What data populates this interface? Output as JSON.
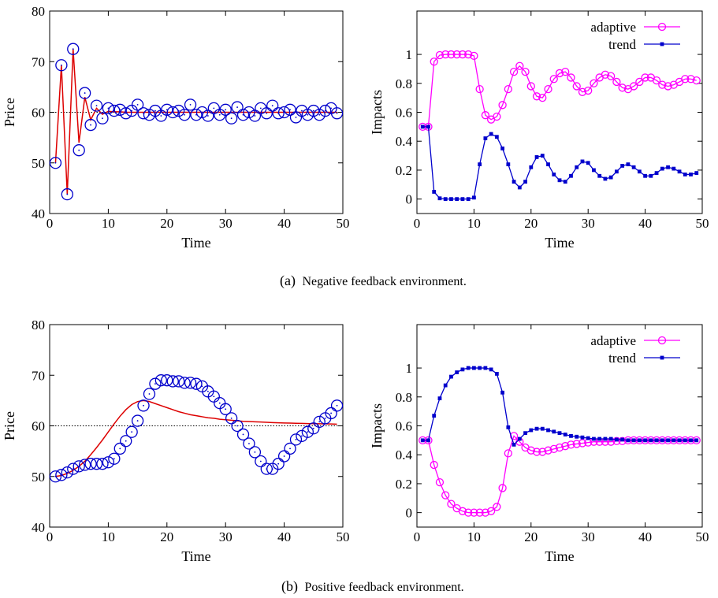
{
  "captions": {
    "a_letter": "(a)",
    "a_text": "Negative feedback environment.",
    "b_letter": "(b)",
    "b_text": "Positive feedback environment."
  },
  "colors": {
    "price_markers": "#0000cc",
    "price_line": "#dd0000",
    "fundamental_line": "#000000",
    "adaptive": "#ff00ff",
    "trend": "#0000cc"
  },
  "chart_data": [
    {
      "id": "a-price",
      "type": "line",
      "xlabel": "Time",
      "ylabel": "Price",
      "xlim": [
        0,
        50
      ],
      "ylim": [
        40,
        80
      ],
      "xticks": [
        0,
        10,
        20,
        30,
        40,
        50
      ],
      "yticks": [
        40,
        50,
        60,
        70,
        80
      ],
      "grid": false,
      "reference_line": {
        "y": 60,
        "style": "dotted"
      },
      "series": [
        {
          "role": "markers",
          "marker": "circle",
          "x": [
            1,
            2,
            3,
            4,
            5,
            6,
            7,
            8,
            9,
            10,
            11,
            12,
            13,
            14,
            15,
            16,
            17,
            18,
            19,
            20,
            21,
            22,
            23,
            24,
            25,
            26,
            27,
            28,
            29,
            30,
            31,
            32,
            33,
            34,
            35,
            36,
            37,
            38,
            39,
            40,
            41,
            42,
            43,
            44,
            45,
            46,
            47,
            48,
            49
          ],
          "values": [
            50.0,
            69.3,
            43.8,
            72.5,
            52.5,
            63.8,
            57.5,
            61.3,
            58.8,
            60.8,
            60.3,
            60.5,
            59.8,
            60.3,
            61.5,
            59.8,
            59.5,
            60.3,
            59.3,
            60.5,
            60.0,
            60.3,
            59.5,
            61.5,
            59.5,
            60.0,
            59.3,
            60.8,
            59.5,
            60.5,
            58.8,
            61.0,
            59.5,
            60.0,
            59.3,
            60.8,
            59.8,
            61.3,
            59.8,
            60.0,
            60.5,
            59.0,
            60.3,
            59.5,
            60.3,
            59.5,
            60.3,
            60.8,
            59.8
          ]
        },
        {
          "role": "line",
          "x": [
            1,
            2,
            3,
            4,
            5,
            6,
            7,
            8,
            9,
            10,
            11,
            12,
            13,
            14,
            15,
            16,
            17,
            18,
            19,
            20,
            21,
            22,
            23,
            24,
            25,
            26,
            27,
            28,
            29,
            30,
            31,
            32,
            33,
            34,
            35,
            36,
            37,
            38,
            39,
            40,
            41,
            42,
            43,
            44,
            45,
            46,
            47,
            48,
            49
          ],
          "values": [
            50.0,
            69.3,
            43.8,
            72.5,
            54.0,
            63.0,
            58.5,
            60.8,
            59.6,
            60.2,
            60.1,
            60.1,
            60.0,
            60.0,
            60.0,
            60.0,
            60.0,
            60.0,
            60.0,
            60.0,
            60.0,
            60.0,
            60.0,
            60.0,
            60.0,
            60.0,
            60.0,
            60.0,
            60.0,
            60.0,
            60.0,
            60.0,
            60.0,
            60.0,
            60.0,
            60.0,
            60.0,
            60.0,
            60.0,
            60.0,
            60.0,
            60.0,
            60.0,
            60.0,
            60.0,
            60.0,
            60.0,
            60.0,
            60.0
          ]
        }
      ]
    },
    {
      "id": "a-impacts",
      "type": "line",
      "xlabel": "Time",
      "ylabel": "Impacts",
      "xlim": [
        0,
        50
      ],
      "ylim": [
        -0.1,
        1.3
      ],
      "xticks": [
        0,
        10,
        20,
        30,
        40,
        50
      ],
      "yticks": [
        0,
        0.2,
        0.4,
        0.6,
        0.8,
        1
      ],
      "grid": false,
      "legend": "top-right",
      "series": [
        {
          "name": "adaptive",
          "marker": "circle",
          "x": [
            1,
            2,
            3,
            4,
            5,
            6,
            7,
            8,
            9,
            10,
            11,
            12,
            13,
            14,
            15,
            16,
            17,
            18,
            19,
            20,
            21,
            22,
            23,
            24,
            25,
            26,
            27,
            28,
            29,
            30,
            31,
            32,
            33,
            34,
            35,
            36,
            37,
            38,
            39,
            40,
            41,
            42,
            43,
            44,
            45,
            46,
            47,
            48,
            49
          ],
          "values": [
            0.5,
            0.5,
            0.95,
            0.995,
            1.0,
            1.0,
            1.0,
            1.0,
            1.0,
            0.99,
            0.76,
            0.58,
            0.55,
            0.57,
            0.65,
            0.76,
            0.88,
            0.92,
            0.88,
            0.78,
            0.71,
            0.7,
            0.76,
            0.83,
            0.87,
            0.88,
            0.84,
            0.78,
            0.74,
            0.75,
            0.8,
            0.84,
            0.86,
            0.85,
            0.81,
            0.77,
            0.76,
            0.78,
            0.81,
            0.84,
            0.84,
            0.82,
            0.79,
            0.78,
            0.79,
            0.81,
            0.83,
            0.83,
            0.82
          ]
        },
        {
          "name": "trend",
          "marker": "square",
          "x": [
            1,
            2,
            3,
            4,
            5,
            6,
            7,
            8,
            9,
            10,
            11,
            12,
            13,
            14,
            15,
            16,
            17,
            18,
            19,
            20,
            21,
            22,
            23,
            24,
            25,
            26,
            27,
            28,
            29,
            30,
            31,
            32,
            33,
            34,
            35,
            36,
            37,
            38,
            39,
            40,
            41,
            42,
            43,
            44,
            45,
            46,
            47,
            48,
            49
          ],
          "values": [
            0.5,
            0.5,
            0.05,
            0.005,
            0.0,
            0.0,
            0.0,
            0.0,
            0.0,
            0.01,
            0.24,
            0.42,
            0.45,
            0.43,
            0.35,
            0.24,
            0.12,
            0.08,
            0.12,
            0.22,
            0.29,
            0.3,
            0.24,
            0.17,
            0.13,
            0.12,
            0.16,
            0.22,
            0.26,
            0.25,
            0.2,
            0.16,
            0.14,
            0.15,
            0.19,
            0.23,
            0.24,
            0.22,
            0.19,
            0.16,
            0.16,
            0.18,
            0.21,
            0.22,
            0.21,
            0.19,
            0.17,
            0.17,
            0.18
          ]
        }
      ]
    },
    {
      "id": "b-price",
      "type": "line",
      "xlabel": "Time",
      "ylabel": "Price",
      "xlim": [
        0,
        50
      ],
      "ylim": [
        40,
        80
      ],
      "xticks": [
        0,
        10,
        20,
        30,
        40,
        50
      ],
      "yticks": [
        40,
        50,
        60,
        70,
        80
      ],
      "grid": false,
      "reference_line": {
        "y": 60,
        "style": "dotted"
      },
      "series": [
        {
          "role": "markers",
          "marker": "circle",
          "x": [
            1,
            2,
            3,
            4,
            5,
            6,
            7,
            8,
            9,
            10,
            11,
            12,
            13,
            14,
            15,
            16,
            17,
            18,
            19,
            20,
            21,
            22,
            23,
            24,
            25,
            26,
            27,
            28,
            29,
            30,
            31,
            32,
            33,
            34,
            35,
            36,
            37,
            38,
            39,
            40,
            41,
            42,
            43,
            44,
            45,
            46,
            47,
            48,
            49
          ],
          "values": [
            50.0,
            50.3,
            50.8,
            51.5,
            52.0,
            52.3,
            52.5,
            52.5,
            52.5,
            52.8,
            53.5,
            55.5,
            57.0,
            58.8,
            61.0,
            64.0,
            66.3,
            68.3,
            69.0,
            69.0,
            68.8,
            68.8,
            68.5,
            68.5,
            68.3,
            67.8,
            66.8,
            65.8,
            64.5,
            63.3,
            61.5,
            60.0,
            58.3,
            56.5,
            54.8,
            53.0,
            51.5,
            51.5,
            52.5,
            54.0,
            55.5,
            57.3,
            58.0,
            58.8,
            59.5,
            60.8,
            61.5,
            62.5,
            64.0
          ]
        },
        {
          "role": "line",
          "x": [
            1,
            2,
            3,
            4,
            5,
            6,
            7,
            8,
            9,
            10,
            11,
            12,
            13,
            14,
            15,
            16,
            17,
            18,
            19,
            20,
            21,
            22,
            23,
            24,
            25,
            26,
            27,
            28,
            29,
            30,
            31,
            32,
            33,
            34,
            35,
            36,
            37,
            38,
            39,
            40,
            41,
            42,
            43,
            44,
            45,
            46,
            47,
            48,
            49
          ],
          "values": [
            50.0,
            50.2,
            50.6,
            51.2,
            52.0,
            53.0,
            54.3,
            55.7,
            57.2,
            58.8,
            60.4,
            61.9,
            63.2,
            64.2,
            64.8,
            65.0,
            64.8,
            64.4,
            64.0,
            63.6,
            63.2,
            62.8,
            62.5,
            62.2,
            62.0,
            61.8,
            61.6,
            61.5,
            61.3,
            61.2,
            61.1,
            61.0,
            60.9,
            60.85,
            60.8,
            60.75,
            60.7,
            60.65,
            60.6,
            60.57,
            60.54,
            60.51,
            60.48,
            60.45,
            60.42,
            60.4,
            60.38,
            60.36,
            60.34
          ]
        }
      ]
    },
    {
      "id": "b-impacts",
      "type": "line",
      "xlabel": "Time",
      "ylabel": "Impacts",
      "xlim": [
        0,
        50
      ],
      "ylim": [
        -0.1,
        1.3
      ],
      "xticks": [
        0,
        10,
        20,
        30,
        40,
        50
      ],
      "yticks": [
        0,
        0.2,
        0.4,
        0.6,
        0.8,
        1
      ],
      "grid": false,
      "legend": "top-right",
      "series": [
        {
          "name": "adaptive",
          "marker": "circle",
          "x": [
            1,
            2,
            3,
            4,
            5,
            6,
            7,
            8,
            9,
            10,
            11,
            12,
            13,
            14,
            15,
            16,
            17,
            18,
            19,
            20,
            21,
            22,
            23,
            24,
            25,
            26,
            27,
            28,
            29,
            30,
            31,
            32,
            33,
            34,
            35,
            36,
            37,
            38,
            39,
            40,
            41,
            42,
            43,
            44,
            45,
            46,
            47,
            48,
            49
          ],
          "values": [
            0.5,
            0.5,
            0.33,
            0.21,
            0.12,
            0.06,
            0.03,
            0.01,
            0.0,
            0.0,
            0.0,
            0.0,
            0.01,
            0.04,
            0.17,
            0.41,
            0.53,
            0.49,
            0.45,
            0.43,
            0.42,
            0.42,
            0.43,
            0.44,
            0.45,
            0.46,
            0.47,
            0.475,
            0.48,
            0.485,
            0.49,
            0.49,
            0.49,
            0.49,
            0.495,
            0.495,
            0.5,
            0.5,
            0.5,
            0.5,
            0.5,
            0.5,
            0.5,
            0.5,
            0.5,
            0.5,
            0.5,
            0.5,
            0.5
          ]
        },
        {
          "name": "trend",
          "marker": "square",
          "x": [
            1,
            2,
            3,
            4,
            5,
            6,
            7,
            8,
            9,
            10,
            11,
            12,
            13,
            14,
            15,
            16,
            17,
            18,
            19,
            20,
            21,
            22,
            23,
            24,
            25,
            26,
            27,
            28,
            29,
            30,
            31,
            32,
            33,
            34,
            35,
            36,
            37,
            38,
            39,
            40,
            41,
            42,
            43,
            44,
            45,
            46,
            47,
            48,
            49
          ],
          "values": [
            0.5,
            0.5,
            0.67,
            0.79,
            0.88,
            0.94,
            0.97,
            0.99,
            1.0,
            1.0,
            1.0,
            1.0,
            0.99,
            0.96,
            0.83,
            0.59,
            0.47,
            0.51,
            0.55,
            0.57,
            0.58,
            0.58,
            0.57,
            0.56,
            0.55,
            0.54,
            0.53,
            0.525,
            0.52,
            0.515,
            0.51,
            0.51,
            0.51,
            0.51,
            0.505,
            0.505,
            0.5,
            0.5,
            0.5,
            0.5,
            0.5,
            0.5,
            0.5,
            0.5,
            0.5,
            0.5,
            0.5,
            0.5,
            0.5
          ]
        }
      ]
    }
  ]
}
